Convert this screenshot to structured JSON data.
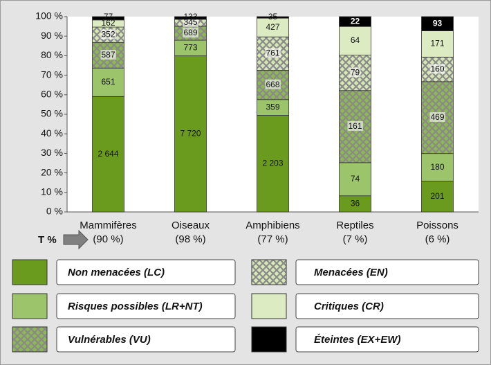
{
  "chart_data": {
    "type": "bar",
    "stacked": "percent",
    "categories": [
      "Mammifères",
      "Oiseaux",
      "Amphibiens",
      "Reptiles",
      "Poissons"
    ],
    "subcategories": [
      "(90 %)",
      "(98 %)",
      "(77 %)",
      "(7 %)",
      "(6 %)"
    ],
    "t_label": "T %",
    "ylim": [
      0,
      100
    ],
    "yticks": [
      {
        "value": 0,
        "label": "0 %"
      },
      {
        "value": 10,
        "label": "10 %"
      },
      {
        "value": 20,
        "label": "20 %"
      },
      {
        "value": 30,
        "label": "30 %"
      },
      {
        "value": 40,
        "label": "40 %"
      },
      {
        "value": 50,
        "label": "50 %"
      },
      {
        "value": 60,
        "label": "60 %"
      },
      {
        "value": 70,
        "label": "70 %"
      },
      {
        "value": 80,
        "label": "80 %"
      },
      {
        "value": 90,
        "label": "90 %"
      },
      {
        "value": 100,
        "label": "100 %"
      }
    ],
    "series": [
      {
        "name": "Non menacées (LC)",
        "color": "#6b9b1e",
        "hatch": false,
        "values": [
          2644,
          7720,
          2203,
          36,
          201
        ],
        "value_labels": [
          "2 644",
          "7 720",
          "2 203",
          "36",
          "201"
        ]
      },
      {
        "name": "Risques possibles (LR+NT)",
        "color": "#9cc56b",
        "hatch": false,
        "values": [
          651,
          773,
          359,
          74,
          180
        ],
        "value_labels": [
          "651",
          "773",
          "359",
          "74",
          "180"
        ]
      },
      {
        "name": "Vulnérables (VU)",
        "color": "#8db852",
        "hatch": true,
        "values": [
          587,
          689,
          668,
          161,
          469
        ],
        "value_labels": [
          "587",
          "689",
          "668",
          "161",
          "469"
        ]
      },
      {
        "name": "Menacées (EN)",
        "color": "#d6e7b6",
        "hatch": true,
        "values": [
          352,
          345,
          761,
          79,
          160
        ],
        "value_labels": [
          "352",
          "345",
          "761",
          "79",
          "160"
        ]
      },
      {
        "name": "Critiques (CR)",
        "color": "#dcebc1",
        "hatch": false,
        "values": [
          162,
          null,
          427,
          64,
          171
        ],
        "value_labels": [
          "162",
          null,
          "427",
          "64",
          "171"
        ]
      },
      {
        "name": "Éteintes (EX+EW)",
        "color": "#000000",
        "hatch": false,
        "values": [
          77,
          133,
          35,
          22,
          93
        ],
        "value_labels": [
          "77",
          "133",
          "35",
          "22",
          "93"
        ]
      }
    ],
    "legend": "bottom"
  }
}
